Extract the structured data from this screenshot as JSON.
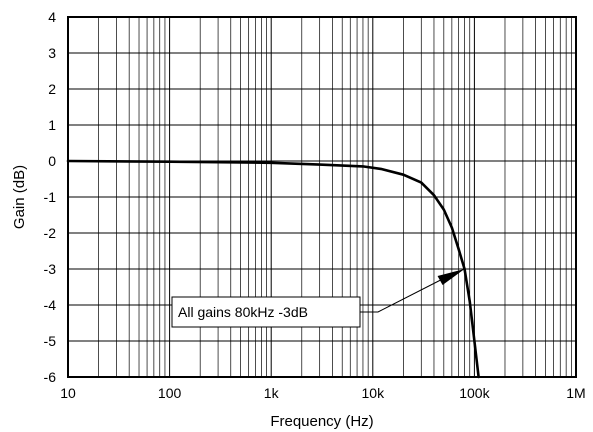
{
  "chart_data": {
    "type": "line",
    "title": "",
    "xlabel": "Frequency (Hz)",
    "ylabel": "Gain (dB)",
    "x_scale": "log",
    "xlim": [
      10,
      1000000
    ],
    "ylim": [
      -6,
      4
    ],
    "grid": true,
    "x_ticks": [
      10,
      100,
      1000,
      10000,
      100000,
      1000000
    ],
    "x_tick_labels": [
      "10",
      "100",
      "1k",
      "10k",
      "100k",
      "1M"
    ],
    "y_ticks": [
      4,
      3,
      2,
      1,
      0,
      -1,
      -2,
      -3,
      -4,
      -5,
      -6
    ],
    "y_tick_labels": [
      "4",
      "3",
      "2",
      "1",
      "0",
      "-1",
      "-2",
      "-3",
      "-4",
      "-5",
      "-6"
    ],
    "series": [
      {
        "x": [
          10,
          100,
          1000,
          3000,
          8000,
          12000,
          20000,
          30000,
          40000,
          50000,
          60000,
          70000,
          80000,
          90000,
          100000,
          110000
        ],
        "y": [
          0,
          -0.02,
          -0.05,
          -0.1,
          -0.15,
          -0.22,
          -0.38,
          -0.6,
          -0.95,
          -1.35,
          -1.85,
          -2.45,
          -3.0,
          -3.9,
          -5.0,
          -6.0
        ]
      }
    ],
    "annotations": [
      {
        "text": "All gains 80kHz -3dB",
        "x": 80000,
        "y": -3
      }
    ]
  }
}
